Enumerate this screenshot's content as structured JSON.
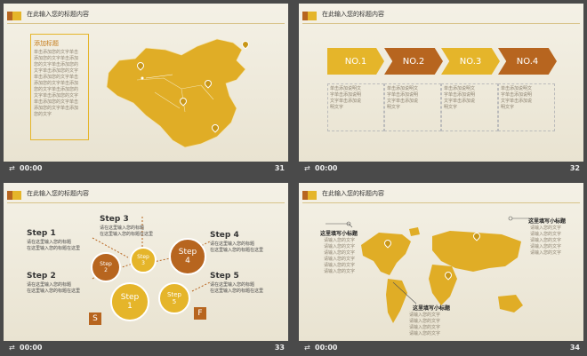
{
  "slides": [
    {
      "header": "在此输入您的标题内容",
      "number": "31",
      "time": "00:00",
      "panel_title": "添加标题",
      "panel_lines": [
        "单击添加您的文字单击",
        "添加您的文字单击添加",
        "您的文字单击添加您的",
        "文字单击添加您的文字",
        "单击添加您的文字单击",
        "添加您的文字单击添加",
        "您的文字单击添加您的",
        "文字单击添加您的文字",
        "单击添加您的文字单击",
        "添加您的文字单击添加",
        "您的文字"
      ]
    },
    {
      "header": "在此输入您的标题内容",
      "number": "32",
      "time": "00:00",
      "items": [
        {
          "label": "NO.1",
          "color": "#e5b52a",
          "text": [
            "单击添加说明文",
            "字单击添加说明",
            "文字单击添加说",
            "明文字"
          ]
        },
        {
          "label": "NO.2",
          "color": "#b7651f",
          "text": [
            "单击添加说明文",
            "字单击添加说明",
            "文字单击添加说",
            "明文字"
          ]
        },
        {
          "label": "NO.3",
          "color": "#e5b52a",
          "text": [
            "单击添加说明文",
            "字单击添加说明",
            "文字单击添加说",
            "明文字"
          ]
        },
        {
          "label": "NO.4",
          "color": "#b7651f",
          "text": [
            "单击添加说明文",
            "字单击添加说明",
            "文字单击添加说",
            "明文字"
          ]
        }
      ]
    },
    {
      "header": "在此输入您的标题内容",
      "number": "33",
      "time": "00:00",
      "steps": [
        {
          "title": "Step 1",
          "text": [
            "请在这里输入您的标题",
            "在这里输入您的标题在这里"
          ]
        },
        {
          "title": "Step 2",
          "text": [
            "请在这里输入您的标题",
            "在这里输入您的标题在这里"
          ]
        },
        {
          "title": "Step 3",
          "text": [
            "请在这里输入您的标题",
            "在这里输入您的标题在这里"
          ]
        },
        {
          "title": "Step 4",
          "text": [
            "请在这里输入您的标题",
            "在这里输入您的标题在这里"
          ]
        },
        {
          "title": "Step 5",
          "text": [
            "请在这里输入您的标题",
            "在这里输入您的标题在这里"
          ]
        }
      ],
      "circles": [
        {
          "line1": "Step",
          "line2": "2"
        },
        {
          "line1": "Step",
          "line2": "3"
        },
        {
          "line1": "Step",
          "line2": "4"
        },
        {
          "line1": "Step",
          "line2": "1"
        },
        {
          "line1": "Step",
          "line2": "5"
        }
      ],
      "start_label": "S",
      "finish_label": "F"
    },
    {
      "header": "在此输入您的标题内容",
      "number": "34",
      "time": "00:00",
      "callouts": [
        {
          "title": "这里填写小标题",
          "text": [
            "请输入您的文字",
            "请输入您的文字",
            "请输入您的文字",
            "请输入您的文字",
            "请输入您的文字",
            "请输入您的文字"
          ]
        },
        {
          "title": "这里填写小标题",
          "text": [
            "请输入您的文字",
            "请输入您的文字",
            "请输入您的文字",
            "请输入您的文字",
            "请输入您的文字"
          ]
        },
        {
          "title": "这里填写小标题",
          "text": [
            "请输入您的文字",
            "请输入您的文字",
            "请输入您的文字",
            "请输入您的文字"
          ]
        }
      ]
    }
  ]
}
